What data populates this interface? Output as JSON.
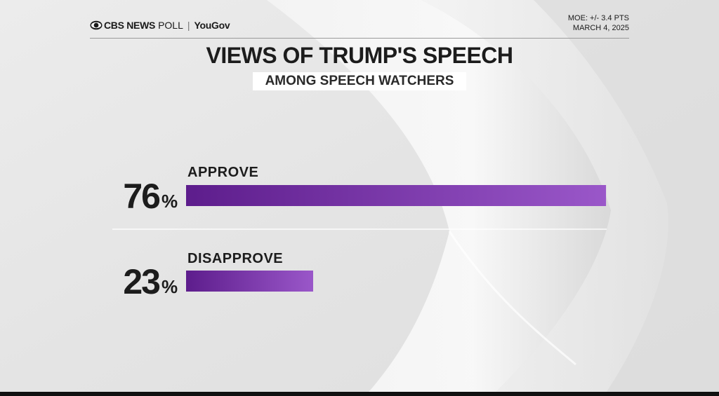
{
  "header": {
    "brand_cbs": "CBS NEWS",
    "brand_poll": "POLL",
    "brand_separator": "|",
    "brand_partner": "YouGov",
    "moe": "MOE: +/- 3.4 PTS",
    "date": "MARCH 4, 2025"
  },
  "title": "VIEWS OF TRUMP'S SPEECH",
  "subtitle": "AMONG SPEECH WATCHERS",
  "colors": {
    "bar_start": "#5d1d8c",
    "bar_end": "#9a57c9",
    "text": "#1c1c1c",
    "background": "#e9e9e9"
  },
  "chart_data": {
    "type": "bar",
    "orientation": "horizontal",
    "categories": [
      "APPROVE",
      "DISAPPROVE"
    ],
    "values": [
      76,
      23
    ],
    "value_labels": [
      "76",
      "23"
    ],
    "value_suffix": "%",
    "xlim": [
      0,
      100
    ],
    "grid": false,
    "legend": "none"
  }
}
